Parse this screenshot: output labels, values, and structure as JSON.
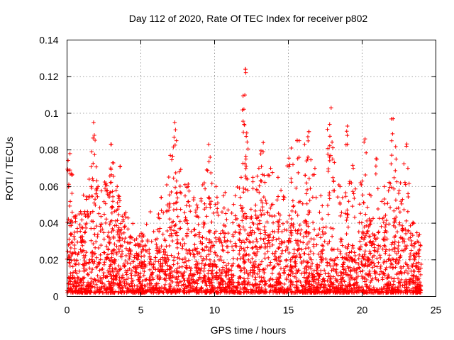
{
  "chart_data": {
    "type": "scatter",
    "title": "Day 112 of 2020, Rate Of TEC Index for receiver p802",
    "xlabel": "GPS time / hours",
    "ylabel": "ROTI / TECUs",
    "xlim": [
      0,
      25
    ],
    "ylim": [
      0,
      0.14
    ],
    "xticks": [
      0,
      5,
      10,
      15,
      20,
      25
    ],
    "yticks": [
      0,
      0.02,
      0.04,
      0.06,
      0.08,
      0.1,
      0.12,
      0.14
    ],
    "xtick_labels": [
      "0",
      "5",
      "10",
      "15",
      "20",
      "25"
    ],
    "ytick_labels": [
      "0",
      "0.02",
      "0.04",
      "0.06",
      "0.08",
      "0.1",
      "0.12",
      "0.14"
    ],
    "grid": true,
    "marker": "+",
    "marker_color": "#ff0000",
    "series": [
      {
        "name": "ROTI",
        "peaks": [
          {
            "x": 0.2,
            "y": 0.078
          },
          {
            "x": 0.2,
            "y": 0.069
          },
          {
            "x": 0.6,
            "y": 0.044
          },
          {
            "x": 1.0,
            "y": 0.045
          },
          {
            "x": 1.3,
            "y": 0.053
          },
          {
            "x": 1.5,
            "y": 0.064
          },
          {
            "x": 1.8,
            "y": 0.095
          },
          {
            "x": 1.85,
            "y": 0.088
          },
          {
            "x": 2.1,
            "y": 0.06
          },
          {
            "x": 2.6,
            "y": 0.061
          },
          {
            "x": 3.0,
            "y": 0.083
          },
          {
            "x": 3.1,
            "y": 0.073
          },
          {
            "x": 3.4,
            "y": 0.06
          },
          {
            "x": 3.6,
            "y": 0.071
          },
          {
            "x": 3.9,
            "y": 0.045
          },
          {
            "x": 4.4,
            "y": 0.032
          },
          {
            "x": 5.2,
            "y": 0.033
          },
          {
            "x": 6.2,
            "y": 0.045
          },
          {
            "x": 6.8,
            "y": 0.05
          },
          {
            "x": 7.0,
            "y": 0.077
          },
          {
            "x": 7.3,
            "y": 0.095
          },
          {
            "x": 7.35,
            "y": 0.091
          },
          {
            "x": 7.6,
            "y": 0.068
          },
          {
            "x": 8.2,
            "y": 0.06
          },
          {
            "x": 8.8,
            "y": 0.05
          },
          {
            "x": 9.3,
            "y": 0.062
          },
          {
            "x": 9.6,
            "y": 0.083
          },
          {
            "x": 9.7,
            "y": 0.076
          },
          {
            "x": 10.1,
            "y": 0.06
          },
          {
            "x": 10.6,
            "y": 0.055
          },
          {
            "x": 11.4,
            "y": 0.055
          },
          {
            "x": 11.8,
            "y": 0.065
          },
          {
            "x": 12.1,
            "y": 0.124
          },
          {
            "x": 12.05,
            "y": 0.11
          },
          {
            "x": 12.0,
            "y": 0.094
          },
          {
            "x": 12.6,
            "y": 0.065
          },
          {
            "x": 13.3,
            "y": 0.084
          },
          {
            "x": 13.0,
            "y": 0.07
          },
          {
            "x": 13.8,
            "y": 0.07
          },
          {
            "x": 14.3,
            "y": 0.065
          },
          {
            "x": 14.5,
            "y": 0.058
          },
          {
            "x": 15.1,
            "y": 0.072
          },
          {
            "x": 15.2,
            "y": 0.081
          },
          {
            "x": 15.6,
            "y": 0.085
          },
          {
            "x": 16.1,
            "y": 0.083
          },
          {
            "x": 16.4,
            "y": 0.09
          },
          {
            "x": 16.3,
            "y": 0.075
          },
          {
            "x": 16.8,
            "y": 0.07
          },
          {
            "x": 17.2,
            "y": 0.055
          },
          {
            "x": 17.9,
            "y": 0.103
          },
          {
            "x": 17.8,
            "y": 0.094
          },
          {
            "x": 18.0,
            "y": 0.075
          },
          {
            "x": 18.5,
            "y": 0.06
          },
          {
            "x": 19.0,
            "y": 0.093
          },
          {
            "x": 19.0,
            "y": 0.083
          },
          {
            "x": 19.4,
            "y": 0.07
          },
          {
            "x": 20.0,
            "y": 0.063
          },
          {
            "x": 20.2,
            "y": 0.086
          },
          {
            "x": 20.6,
            "y": 0.055
          },
          {
            "x": 21.0,
            "y": 0.075
          },
          {
            "x": 21.5,
            "y": 0.06
          },
          {
            "x": 22.1,
            "y": 0.097
          },
          {
            "x": 22.0,
            "y": 0.085
          },
          {
            "x": 22.3,
            "y": 0.075
          },
          {
            "x": 22.6,
            "y": 0.062
          },
          {
            "x": 23.0,
            "y": 0.082
          },
          {
            "x": 23.1,
            "y": 0.07
          },
          {
            "x": 23.5,
            "y": 0.04
          },
          {
            "x": 23.8,
            "y": 0.033
          }
        ],
        "activity_profile": [
          {
            "x": 0,
            "y": 0.03
          },
          {
            "x": 1,
            "y": 0.045
          },
          {
            "x": 2,
            "y": 0.05
          },
          {
            "x": 3,
            "y": 0.055
          },
          {
            "x": 4,
            "y": 0.04
          },
          {
            "x": 5,
            "y": 0.028
          },
          {
            "x": 6,
            "y": 0.04
          },
          {
            "x": 7,
            "y": 0.055
          },
          {
            "x": 8,
            "y": 0.05
          },
          {
            "x": 9,
            "y": 0.05
          },
          {
            "x": 10,
            "y": 0.045
          },
          {
            "x": 11,
            "y": 0.04
          },
          {
            "x": 12,
            "y": 0.058
          },
          {
            "x": 13,
            "y": 0.06
          },
          {
            "x": 14,
            "y": 0.05
          },
          {
            "x": 15,
            "y": 0.045
          },
          {
            "x": 16,
            "y": 0.048
          },
          {
            "x": 17,
            "y": 0.03
          },
          {
            "x": 18,
            "y": 0.028
          },
          {
            "x": 19,
            "y": 0.03
          },
          {
            "x": 20,
            "y": 0.035
          },
          {
            "x": 21,
            "y": 0.04
          },
          {
            "x": 22,
            "y": 0.055
          },
          {
            "x": 23,
            "y": 0.05
          },
          {
            "x": 24,
            "y": 0.02
          }
        ],
        "x_range": [
          0,
          24
        ],
        "floor": 0.002
      }
    ]
  }
}
